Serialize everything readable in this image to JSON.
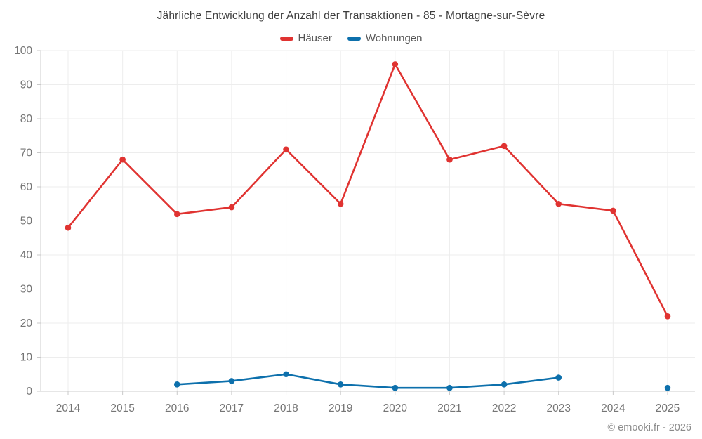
{
  "header": {
    "title": "Jährliche Entwicklung der Anzahl der Transaktionen - 85 - Mortagne-sur-Sèvre"
  },
  "footer": {
    "attribution": "© emooki.fr - 2026"
  },
  "chart_data": {
    "type": "line",
    "title": "Jährliche Entwicklung der Anzahl der Transaktionen - 85 - Mortagne-sur-Sèvre",
    "categories": [
      "2014",
      "2015",
      "2016",
      "2017",
      "2018",
      "2019",
      "2020",
      "2021",
      "2022",
      "2023",
      "2024",
      "2025"
    ],
    "series": [
      {
        "name": "Häuser",
        "color": "#e03331",
        "values": [
          48,
          68,
          52,
          54,
          71,
          55,
          96,
          68,
          72,
          55,
          53,
          22
        ]
      },
      {
        "name": "Wohnungen",
        "color": "#0d70ac",
        "values": [
          null,
          null,
          2,
          3,
          5,
          2,
          1,
          1,
          2,
          4,
          null,
          1
        ]
      }
    ],
    "xlabel": "",
    "ylabel": "",
    "ylim": [
      0,
      100
    ],
    "yticks": [
      0,
      10,
      20,
      30,
      40,
      50,
      60,
      70,
      80,
      90,
      100
    ],
    "grid": true,
    "legend_position": "top",
    "colors": {
      "grid_line": "#ededed",
      "axis_line": "#cccccc",
      "tick_mark": "#c9c9c9",
      "tick_label": "#757575"
    }
  }
}
